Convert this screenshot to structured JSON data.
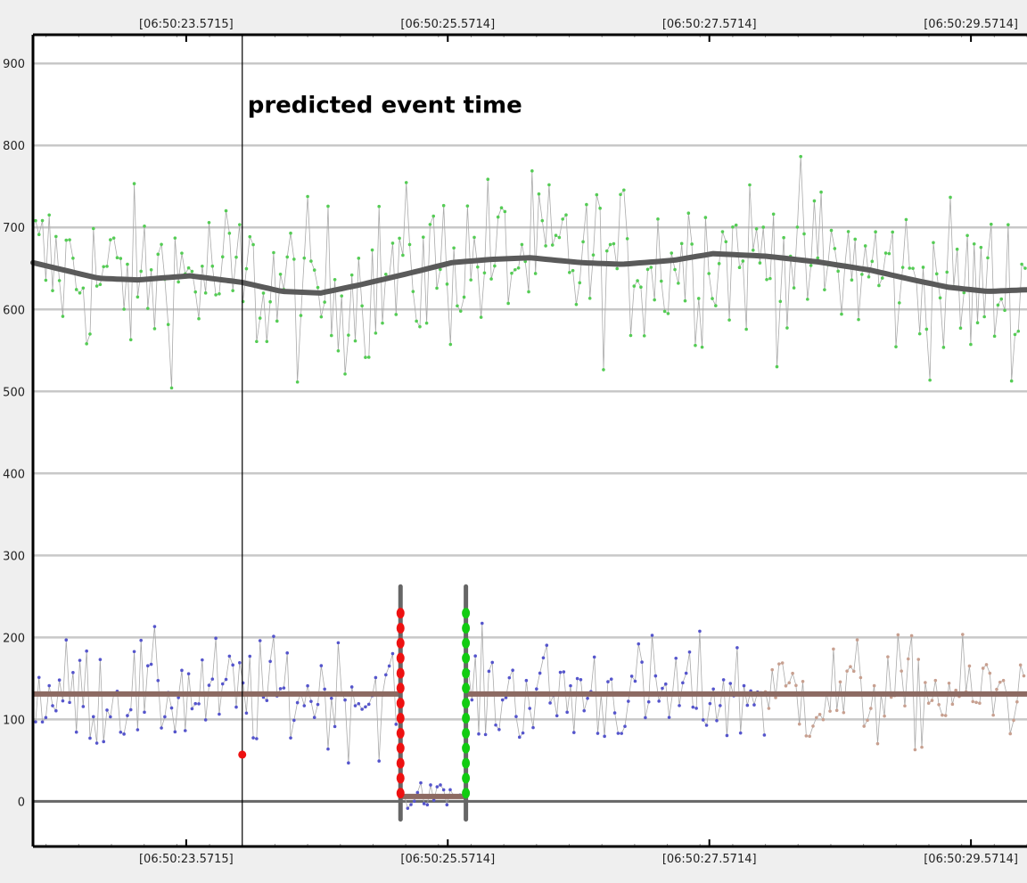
{
  "chart_data": {
    "type": "scatter",
    "title": "",
    "xlabel": "",
    "ylabel": "",
    "x_unit": "seconds",
    "xlim": [
      22.4,
      30.0
    ],
    "ylim": [
      -55,
      935
    ],
    "grid": true,
    "y_ticks": [
      0,
      100,
      200,
      300,
      400,
      500,
      600,
      700,
      800,
      900
    ],
    "x_ticks": [
      {
        "value": 23.5715,
        "label": "[06:50:23.5715]"
      },
      {
        "value": 25.5714,
        "label": "[06:50:25.5714]"
      },
      {
        "value": 27.5714,
        "label": "[06:50:27.5714]"
      },
      {
        "value": 29.5714,
        "label": "[06:50:29.5714]"
      }
    ],
    "annotations": [
      {
        "text": "predicted event time",
        "x": 24.0
      }
    ],
    "event_marker": {
      "x": 24.0,
      "y": 57,
      "color": "#ee1111"
    },
    "colors": {
      "upper_points": "#55cc55",
      "lower_points_before": "#5555cc",
      "lower_points_after": "#c8a090",
      "connector": "#aaaaaa",
      "trend_upper": "#5a5a5a",
      "trend_lower": "#8c6a62",
      "red_markers": "#ee1111",
      "green_markers": "#11cc11",
      "gray_bars": "#666666"
    },
    "series": {
      "upper_trend": {
        "x": [
          22.4,
          22.9,
          23.2,
          23.6,
          24.0,
          24.3,
          24.6,
          24.9,
          25.3,
          25.6,
          25.9,
          26.2,
          26.6,
          26.9,
          27.3,
          27.6,
          28.0,
          28.4,
          28.8,
          29.1,
          29.4,
          29.7,
          30.0
        ],
        "y": [
          657,
          638,
          636,
          641,
          633,
          622,
          620,
          630,
          645,
          657,
          661,
          663,
          657,
          655,
          660,
          668,
          665,
          658,
          648,
          637,
          627,
          622,
          624
        ]
      },
      "lower_trend": {
        "y": 131
      },
      "gap_segment": {
        "x_start": 25.21,
        "x_end": 25.71,
        "y": 6
      }
    }
  }
}
